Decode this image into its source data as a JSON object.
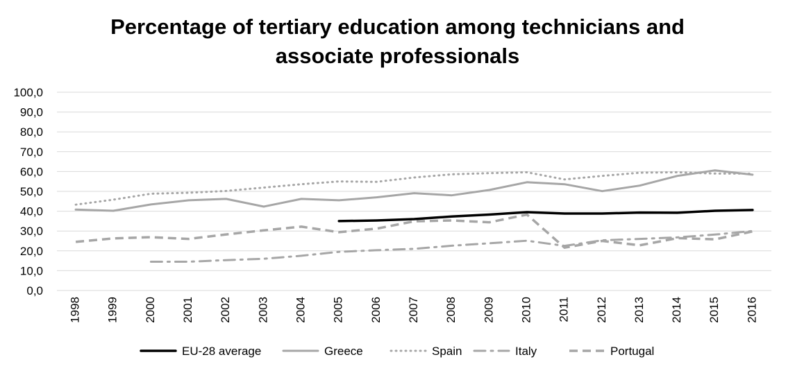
{
  "chart_data": {
    "type": "line",
    "title": "Percentage of tertiary education among technicians and associate professionals",
    "title_lines": [
      "Percentage of tertiary education among technicians and",
      "associate professionals"
    ],
    "xlabel": "",
    "ylabel": "",
    "ylim": [
      0,
      100
    ],
    "y_ticks": [
      "0,0",
      "10,0",
      "20,0",
      "30,0",
      "40,0",
      "50,0",
      "60,0",
      "70,0",
      "80,0",
      "90,0",
      "100,0"
    ],
    "categories": [
      "1998",
      "1999",
      "2000",
      "2001",
      "2002",
      "2003",
      "2004",
      "2005",
      "2006",
      "2007",
      "2008",
      "2009",
      "2010",
      "2011",
      "2012",
      "2013",
      "2014",
      "2015",
      "2016"
    ],
    "grid": true,
    "legend_position": "bottom",
    "series": [
      {
        "name": "EU-28 average",
        "color": "#000000",
        "style": "solid-thick",
        "values": [
          null,
          null,
          null,
          null,
          null,
          null,
          null,
          35.0,
          35.3,
          36.0,
          37.3,
          38.3,
          39.5,
          38.8,
          38.8,
          39.3,
          39.2,
          40.2,
          40.6
        ]
      },
      {
        "name": "Greece",
        "color": "#a6a6a6",
        "style": "solid",
        "values": [
          40.8,
          40.2,
          43.4,
          45.5,
          46.2,
          42.3,
          46.2,
          45.5,
          47.0,
          49.1,
          48.0,
          50.7,
          54.6,
          53.6,
          50.1,
          52.9,
          57.8,
          60.6,
          58.4
        ]
      },
      {
        "name": "Spain",
        "color": "#a6a6a6",
        "style": "dotted",
        "values": [
          43.3,
          45.8,
          48.8,
          49.3,
          50.2,
          51.9,
          53.6,
          55.0,
          54.8,
          57.0,
          58.6,
          59.2,
          59.6,
          56.0,
          57.8,
          59.4,
          59.6,
          59.0,
          58.9
        ]
      },
      {
        "name": "Italy",
        "color": "#a6a6a6",
        "style": "dash-dot",
        "values": [
          null,
          null,
          14.5,
          14.5,
          15.3,
          16.0,
          17.5,
          19.5,
          20.3,
          21.0,
          22.6,
          23.8,
          25.1,
          22.5,
          25.3,
          26.0,
          26.8,
          28.2,
          30.0
        ]
      },
      {
        "name": "Portugal",
        "color": "#a6a6a6",
        "style": "dashed",
        "values": [
          24.5,
          26.3,
          26.9,
          26.0,
          28.3,
          30.3,
          32.2,
          29.4,
          31.2,
          34.9,
          35.3,
          34.4,
          38.3,
          21.6,
          25.0,
          22.8,
          26.4,
          25.8,
          29.8
        ]
      }
    ]
  }
}
